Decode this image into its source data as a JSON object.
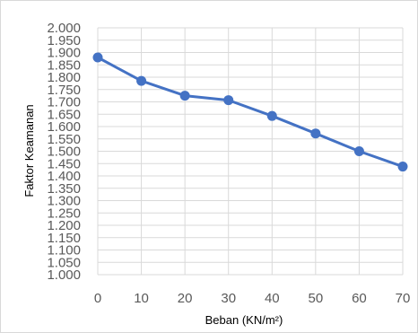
{
  "chart_data": {
    "type": "line",
    "title": "",
    "xlabel": "Beban (KN/m²)",
    "ylabel": "Faktor Keamanan",
    "x": [
      0,
      10,
      20,
      30,
      40,
      50,
      60,
      70
    ],
    "series": [
      {
        "values": [
          1.88,
          1.785,
          1.725,
          1.707,
          1.643,
          1.572,
          1.5,
          1.438
        ]
      }
    ],
    "xlim": [
      0,
      70
    ],
    "ylim": [
      1.0,
      2.0
    ],
    "x_tick_labels": [
      "0",
      "10",
      "20",
      "30",
      "40",
      "50",
      "60",
      "70"
    ],
    "y_tick_labels": [
      "1.000",
      "1.050",
      "1.100",
      "1.150",
      "1.200",
      "1.250",
      "1.300",
      "1.350",
      "1.400",
      "1.450",
      "1.500",
      "1.550",
      "1.600",
      "1.650",
      "1.700",
      "1.750",
      "1.800",
      "1.850",
      "1.900",
      "1.950",
      "2.000"
    ],
    "grid": true,
    "legend": "none",
    "colors": {
      "line": "#4472C4",
      "grid": "#d9d9d9",
      "tick_text": "#595959"
    }
  }
}
